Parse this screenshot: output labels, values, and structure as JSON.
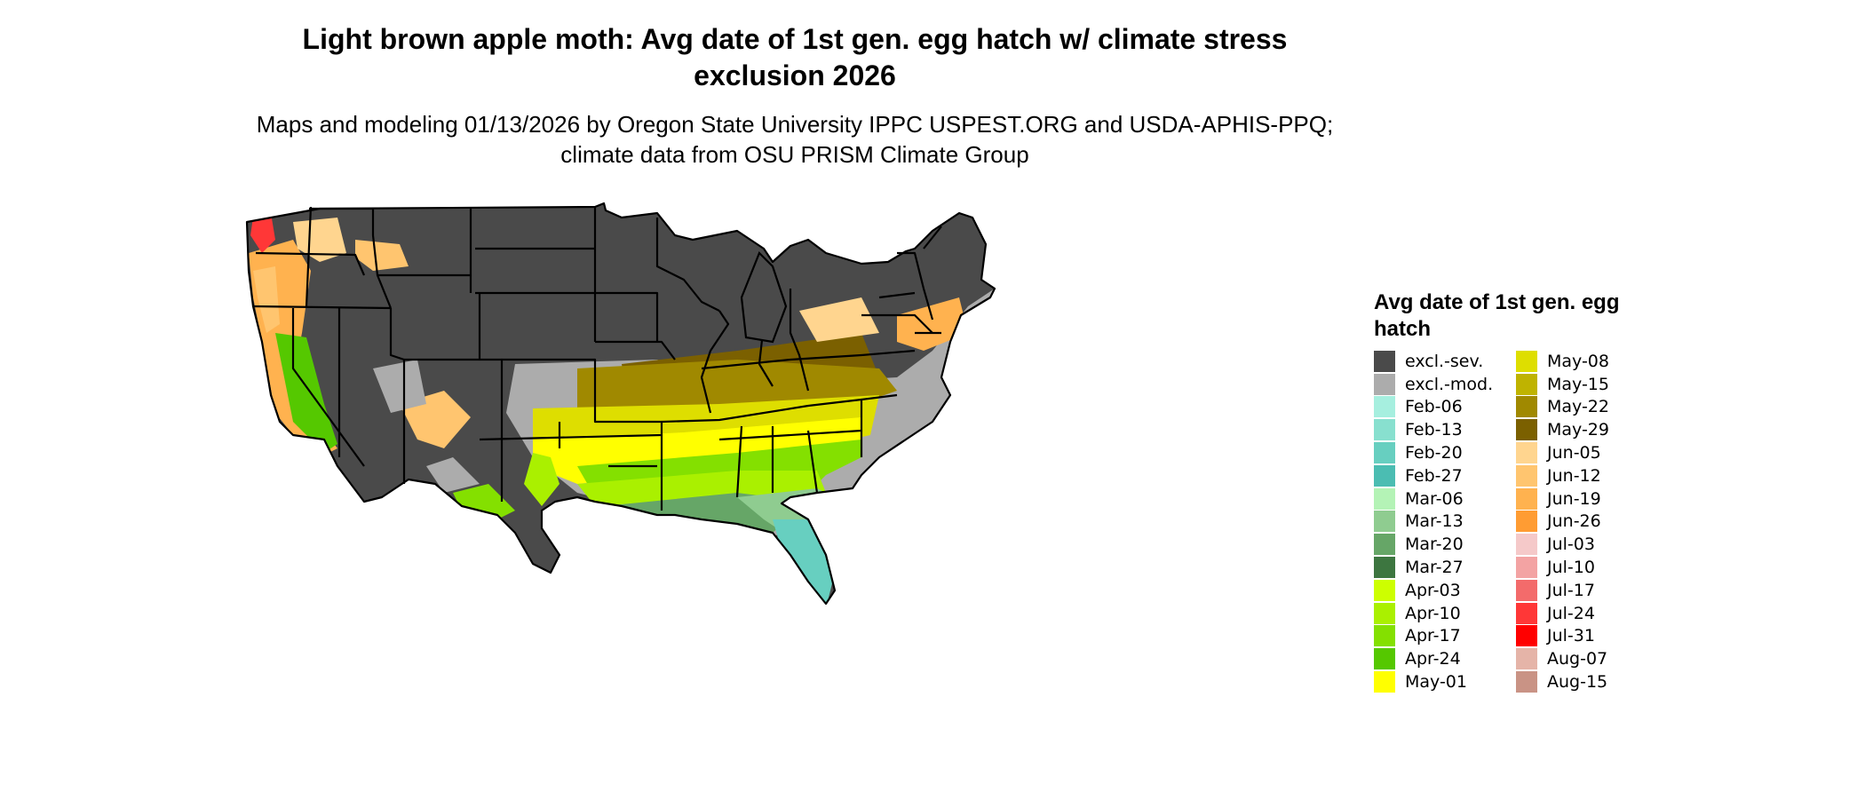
{
  "title": "Light brown apple moth: Avg date of 1st gen. egg hatch w/ climate stress exclusion 2026",
  "subtitle": "Maps and modeling 01/13/2026 by Oregon State University IPPC USPEST.ORG and USDA-APHIS-PPQ; climate data from OSU PRISM Climate Group",
  "legend": {
    "title": "Avg date of 1st gen. egg hatch",
    "items": [
      {
        "label": "excl.-sev.",
        "color": "#4a4a4a"
      },
      {
        "label": "excl.-mod.",
        "color": "#acacac"
      },
      {
        "label": "Feb-06",
        "color": "#a6efdf"
      },
      {
        "label": "Feb-13",
        "color": "#88e0cf"
      },
      {
        "label": "Feb-20",
        "color": "#67cfc0"
      },
      {
        "label": "Feb-27",
        "color": "#4bbdb2"
      },
      {
        "label": "Mar-06",
        "color": "#b4f3b6"
      },
      {
        "label": "Mar-13",
        "color": "#8fcc90"
      },
      {
        "label": "Mar-20",
        "color": "#66a667"
      },
      {
        "label": "Mar-27",
        "color": "#3d7640"
      },
      {
        "label": "Apr-03",
        "color": "#cdff00"
      },
      {
        "label": "Apr-10",
        "color": "#aaf000"
      },
      {
        "label": "Apr-17",
        "color": "#84e000"
      },
      {
        "label": "Apr-24",
        "color": "#55c800"
      },
      {
        "label": "May-01",
        "color": "#ffff00"
      },
      {
        "label": "May-08",
        "color": "#dede00"
      },
      {
        "label": "May-15",
        "color": "#bfb300"
      },
      {
        "label": "May-22",
        "color": "#a08900"
      },
      {
        "label": "May-29",
        "color": "#7b6000"
      },
      {
        "label": "Jun-05",
        "color": "#ffd58f"
      },
      {
        "label": "Jun-12",
        "color": "#ffc56f"
      },
      {
        "label": "Jun-19",
        "color": "#ffb24f"
      },
      {
        "label": "Jun-26",
        "color": "#ff9c33"
      },
      {
        "label": "Jul-03",
        "color": "#f5c9c9"
      },
      {
        "label": "Jul-10",
        "color": "#f3a3a3"
      },
      {
        "label": "Jul-17",
        "color": "#f36b6b"
      },
      {
        "label": "Jul-24",
        "color": "#ff3737"
      },
      {
        "label": "Jul-31",
        "color": "#ff0000"
      },
      {
        "label": "Aug-07",
        "color": "#e5b4a8"
      },
      {
        "label": "Aug-15",
        "color": "#c99385"
      }
    ]
  }
}
